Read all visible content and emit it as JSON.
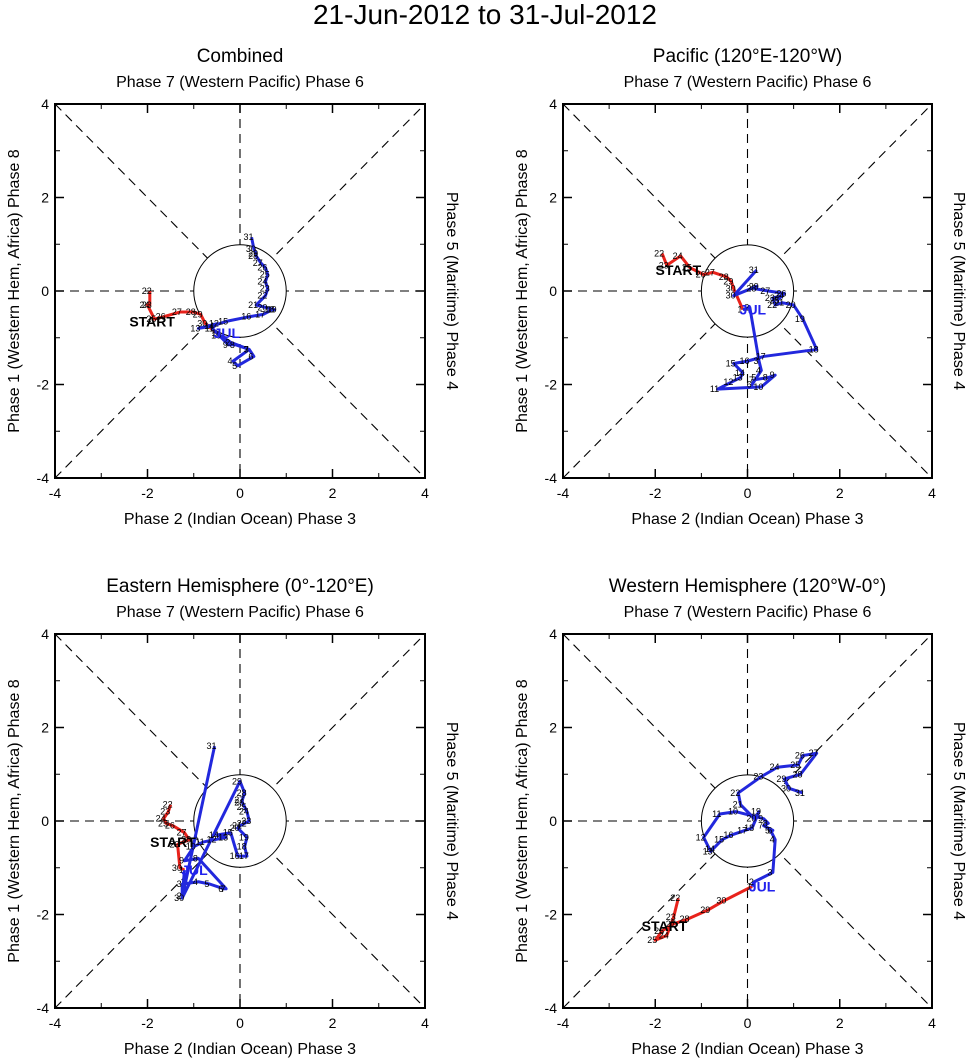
{
  "figure_title": "21-Jun-2012 to 31-Jul-2012",
  "labels": {
    "top": "Phase 7 (Western Pacific) Phase 6",
    "bottom": "Phase 2 (Indian Ocean) Phase 3",
    "left": "Phase 1 (Western Hem, Africa) Phase 8",
    "right": "Phase 5 (Maritime) Phase 4",
    "start": "START",
    "month_marker": "JUL"
  },
  "colors": {
    "june": "#e8221b",
    "july": "#2228dd"
  },
  "chart_data": [
    {
      "type": "line",
      "title": "Combined",
      "xlabel": "Phase 2 (Indian Ocean) Phase 3",
      "ylabel": "Phase 1 (Western Hem, Africa) Phase 8",
      "xlim": [
        -4,
        4
      ],
      "ylim": [
        -4,
        4
      ],
      "xticks": [
        -4,
        -2,
        0,
        2,
        4
      ],
      "yticks": [
        -4,
        -2,
        0,
        2,
        4
      ],
      "start": [
        -1.9,
        -0.65
      ],
      "series": [
        {
          "name": "June",
          "days": [
            22,
            23,
            24,
            25,
            26,
            27,
            28,
            29,
            30
          ],
          "x": [
            -1.95,
            -1.95,
            -2.0,
            -1.85,
            -1.65,
            -1.3,
            -1.0,
            -0.85,
            -0.75
          ],
          "y": [
            0.0,
            -0.3,
            -0.3,
            -0.6,
            -0.55,
            -0.45,
            -0.45,
            -0.5,
            -0.7
          ]
        },
        {
          "name": "July",
          "days": [
            1,
            2,
            3,
            4,
            5,
            6,
            7,
            8,
            9,
            10,
            11,
            12,
            13,
            14,
            15,
            16,
            17,
            18,
            19,
            20,
            21,
            22,
            23,
            24,
            25,
            26,
            27,
            28,
            29,
            30,
            31
          ],
          "x": [
            -0.5,
            -0.2,
            0.2,
            -0.15,
            -0.05,
            0.3,
            0.2,
            -0.1,
            -0.25,
            -0.45,
            -0.6,
            -0.5,
            -0.9,
            -0.6,
            -0.3,
            0.2,
            0.5,
            0.7,
            0.75,
            0.55,
            0.35,
            0.55,
            0.6,
            0.55,
            0.6,
            0.55,
            0.45,
            0.35,
            0.35,
            0.3,
            0.25
          ],
          "y": [
            -0.9,
            -1.1,
            -1.25,
            -1.5,
            -1.6,
            -1.4,
            -1.25,
            -1.15,
            -1.15,
            -0.95,
            -0.8,
            -0.7,
            -0.8,
            -0.75,
            -0.65,
            -0.55,
            -0.5,
            -0.4,
            -0.4,
            -0.35,
            -0.3,
            -0.1,
            0.05,
            0.2,
            0.35,
            0.5,
            0.6,
            0.75,
            0.8,
            0.9,
            1.15
          ]
        }
      ]
    },
    {
      "type": "line",
      "title": "Pacific (120°E-120°W)",
      "xlabel": "Phase 2 (Indian Ocean) Phase 3",
      "ylabel": "Phase 1 (Western Hem, Africa) Phase 8",
      "xlim": [
        -4,
        4
      ],
      "ylim": [
        -4,
        4
      ],
      "xticks": [
        -4,
        -2,
        0,
        2,
        4
      ],
      "yticks": [
        -4,
        -2,
        0,
        2,
        4
      ],
      "start": [
        -1.5,
        0.45
      ],
      "series": [
        {
          "name": "June",
          "days": [
            22,
            23,
            24,
            25,
            26,
            27,
            28,
            29,
            30
          ],
          "x": [
            -1.85,
            -1.75,
            -1.45,
            -1.25,
            -0.95,
            -0.75,
            -0.45,
            -0.35,
            -0.3
          ],
          "y": [
            0.8,
            0.55,
            0.75,
            0.5,
            0.35,
            0.4,
            0.3,
            0.2,
            0.05
          ]
        },
        {
          "name": "July",
          "days": [
            1,
            2,
            3,
            4,
            5,
            6,
            7,
            8,
            9,
            10,
            11,
            12,
            13,
            14,
            15,
            16,
            17,
            18,
            19,
            20,
            21,
            22,
            23,
            24,
            25,
            26,
            27,
            28,
            29,
            30,
            31
          ],
          "x": [
            -0.1,
            0.05,
            0.25,
            0.3,
            0.2,
            0.1,
            0.15,
            0.45,
            0.6,
            0.3,
            -0.65,
            -0.35,
            -0.15,
            -0.1,
            -0.3,
            0.0,
            0.35,
            1.5,
            1.2,
            1.0,
            0.75,
            0.6,
            0.55,
            0.75,
            0.65,
            0.8,
            0.45,
            0.15,
            0.2,
            -0.3,
            0.2
          ],
          "y": [
            -0.4,
            -0.35,
            -1.5,
            -1.7,
            -1.85,
            -2.0,
            -1.9,
            -1.85,
            -1.8,
            -2.05,
            -2.1,
            -1.95,
            -1.85,
            -1.75,
            -1.55,
            -1.5,
            -1.4,
            -1.25,
            -0.6,
            -0.3,
            -0.25,
            -0.3,
            -0.15,
            -0.1,
            -0.2,
            -0.05,
            0.0,
            0.05,
            0.1,
            -0.1,
            0.45
          ]
        }
      ]
    },
    {
      "type": "line",
      "title": "Eastern Hemisphere (0°-120°E)",
      "xlabel": "Phase 2 (Indian Ocean) Phase 3",
      "ylabel": "Phase 1 (Western Hem, Africa) Phase 8",
      "xlim": [
        -4,
        4
      ],
      "ylim": [
        -4,
        4
      ],
      "xticks": [
        -4,
        -2,
        0,
        2,
        4
      ],
      "yticks": [
        -4,
        -2,
        0,
        2,
        4
      ],
      "start": [
        -1.45,
        -0.45
      ],
      "series": [
        {
          "name": "June",
          "days": [
            22,
            23,
            24,
            25,
            26,
            27,
            28,
            29,
            30
          ],
          "x": [
            -1.5,
            -1.55,
            -1.65,
            -1.6,
            -1.45,
            -1.2,
            -1.1,
            -1.35,
            -1.3
          ],
          "y": [
            0.35,
            0.2,
            0.05,
            -0.05,
            -0.1,
            -0.25,
            -0.4,
            -0.5,
            -1.0
          ]
        },
        {
          "name": "July",
          "days": [
            1,
            2,
            3,
            4,
            5,
            6,
            7,
            8,
            9,
            10,
            11,
            12,
            13,
            14,
            15,
            16,
            17,
            18,
            19,
            20,
            21,
            22,
            23,
            24,
            25,
            26,
            27,
            28,
            29,
            30,
            31
          ],
          "x": [
            -1.2,
            -1.25,
            -1.25,
            -0.9,
            -0.65,
            -0.35,
            -0.3,
            -0.9,
            -1.2,
            -1.0,
            -0.8,
            -0.55,
            -0.3,
            -0.5,
            -0.2,
            -0.05,
            0.15,
            0.1,
            0.15,
            -0.05,
            0.0,
            0.1,
            0.2,
            0.15,
            0.1,
            0.05,
            0.05,
            0.1,
            0.0,
            -1.25,
            -0.55
          ],
          "y": [
            -1.05,
            -1.6,
            -1.35,
            -1.3,
            -1.35,
            -1.45,
            -1.45,
            -0.8,
            -0.85,
            -0.55,
            -0.45,
            -0.4,
            -0.35,
            -0.3,
            -0.25,
            -0.75,
            -0.75,
            -0.55,
            -0.35,
            -0.15,
            -0.1,
            -0.05,
            0.0,
            0.2,
            0.3,
            0.4,
            0.45,
            0.6,
            0.85,
            -1.65,
            1.6
          ]
        }
      ]
    },
    {
      "type": "line",
      "title": "Western Hemisphere (120°W-0°)",
      "xlabel": "Phase 2 (Indian Ocean) Phase 3",
      "ylabel": "Phase 1 (Western Hem, Africa) Phase 8",
      "xlim": [
        -4,
        4
      ],
      "ylim": [
        -4,
        4
      ],
      "xticks": [
        -4,
        -2,
        0,
        2,
        4
      ],
      "yticks": [
        -4,
        -2,
        0,
        2,
        4
      ],
      "start": [
        -1.8,
        -2.25
      ],
      "series": [
        {
          "name": "June",
          "days": [
            22,
            23,
            24,
            25,
            26,
            27,
            28,
            29,
            30
          ],
          "x": [
            -1.5,
            -1.6,
            -1.75,
            -2.0,
            -1.85,
            -1.6,
            -1.3,
            -0.85,
            -0.5
          ],
          "y": [
            -1.65,
            -2.05,
            -2.45,
            -2.55,
            -2.35,
            -2.2,
            -2.1,
            -1.9,
            -1.7
          ]
        },
        {
          "name": "July",
          "days": [
            1,
            2,
            3,
            4,
            5,
            6,
            7,
            8,
            9,
            10,
            11,
            12,
            13,
            14,
            15,
            16,
            17,
            18,
            19,
            20,
            21,
            22,
            23,
            24,
            25,
            26,
            27,
            28,
            29,
            30,
            31
          ],
          "x": [
            0.1,
            0.15,
            0.55,
            0.6,
            0.5,
            0.55,
            0.35,
            0.45,
            0.35,
            -0.25,
            -0.6,
            -0.95,
            -0.8,
            -0.75,
            -0.55,
            -0.35,
            -0.05,
            0.1,
            0.25,
            0.15,
            -0.15,
            -0.2,
            0.3,
            0.65,
            1.1,
            1.2,
            1.5,
            1.15,
            0.8,
            0.9,
            1.2
          ],
          "y": [
            -1.4,
            -1.3,
            -1.1,
            -0.4,
            -0.2,
            -0.2,
            -0.1,
            -0.05,
            0.05,
            0.2,
            0.15,
            -0.35,
            -0.65,
            -0.6,
            -0.4,
            -0.3,
            -0.2,
            -0.15,
            0.2,
            0.05,
            0.35,
            0.6,
            0.95,
            1.15,
            1.2,
            1.4,
            1.45,
            1.0,
            0.9,
            0.7,
            0.6
          ]
        }
      ]
    }
  ]
}
